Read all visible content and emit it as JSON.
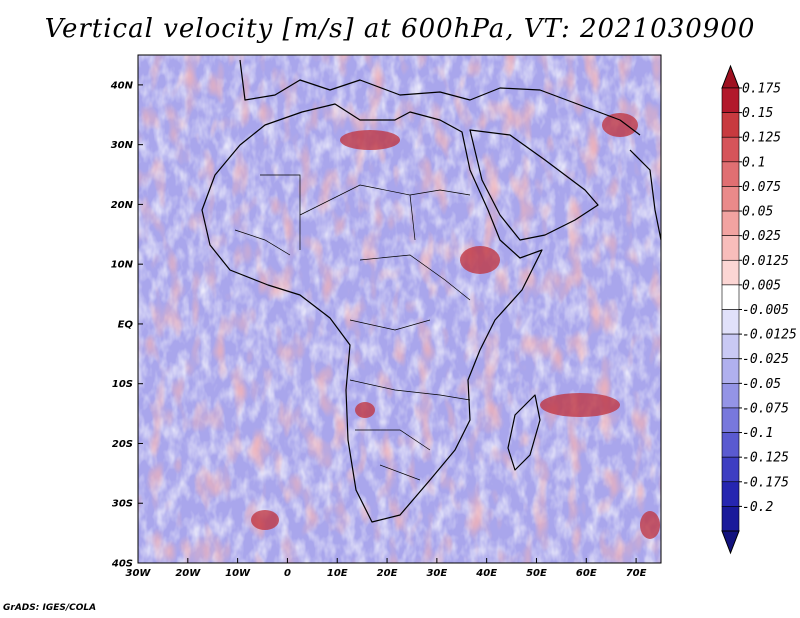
{
  "title": "Vertical velocity [m/s] at 600hPa, VT: 2021030900",
  "footer": "GrADS: IGES/COLA",
  "map": {
    "lon_range": [
      -30,
      75
    ],
    "lat_range": [
      -40,
      45
    ],
    "lat_labels": [
      "40N",
      "30N",
      "20N",
      "10N",
      "EQ",
      "10S",
      "20S",
      "30S",
      "40S"
    ],
    "lat_values": [
      40,
      30,
      20,
      10,
      0,
      -10,
      -20,
      -30,
      -40
    ],
    "lon_labels": [
      "30W",
      "20W",
      "10W",
      "0",
      "10E",
      "20E",
      "30E",
      "40E",
      "50E",
      "60E",
      "70E"
    ],
    "lon_values": [
      -30,
      -20,
      -10,
      0,
      10,
      20,
      30,
      40,
      50,
      60,
      70
    ]
  },
  "colorbar": {
    "labels": [
      "0.175",
      "0.15",
      "0.125",
      "0.1",
      "0.075",
      "0.05",
      "0.025",
      "0.0125",
      "0.005",
      "-0.005",
      "-0.0125",
      "-0.025",
      "-0.05",
      "-0.075",
      "-0.1",
      "-0.125",
      "-0.175",
      "-0.2"
    ],
    "colors": [
      "#b2182b",
      "#c83a3f",
      "#d6545a",
      "#e06f72",
      "#ea8a8a",
      "#f2a3a1",
      "#f8bdbb",
      "#fcd6d4",
      "#ffffff",
      "#e1e1fa",
      "#c9c9f4",
      "#b0b0ee",
      "#9494e6",
      "#7878dc",
      "#5a5ad0",
      "#3e3ec2",
      "#2626b0",
      "#1a1a9a"
    ],
    "top_arrow_color": "#9e1020",
    "bottom_arrow_color": "#12127e"
  }
}
